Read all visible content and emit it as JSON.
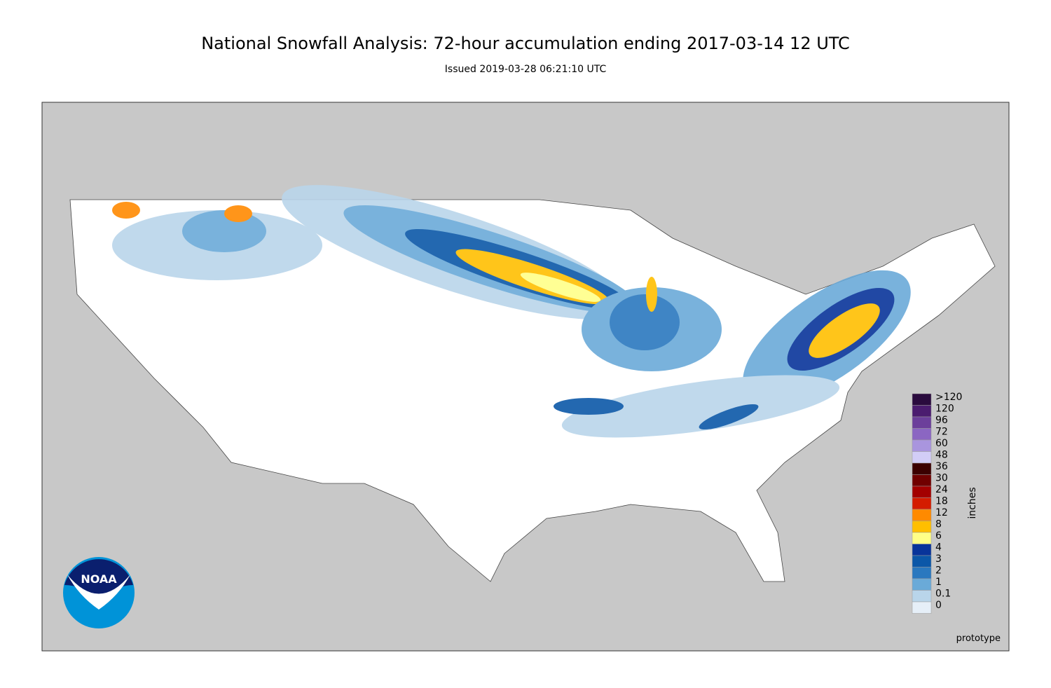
{
  "header": {
    "title": "National Snowfall Analysis: 72-hour accumulation ending 2017-03-14 12 UTC",
    "subtitle": "Issued 2019-03-28 06:21:10 UTC"
  },
  "legend": {
    "unit": "inches",
    "items": [
      {
        "label": ">120",
        "color": "#2a0b3e"
      },
      {
        "label": "120",
        "color": "#4b1c6f"
      },
      {
        "label": "96",
        "color": "#6c3f9b"
      },
      {
        "label": "72",
        "color": "#8b66c2"
      },
      {
        "label": "60",
        "color": "#a995de"
      },
      {
        "label": "48",
        "color": "#d2cdf7"
      },
      {
        "label": "36",
        "color": "#3b0000"
      },
      {
        "label": "30",
        "color": "#700000"
      },
      {
        "label": "24",
        "color": "#a30000"
      },
      {
        "label": "18",
        "color": "#d41c00"
      },
      {
        "label": "12",
        "color": "#ff8a00"
      },
      {
        "label": "8",
        "color": "#ffbf00"
      },
      {
        "label": "6",
        "color": "#ffff88"
      },
      {
        "label": "4",
        "color": "#08349a"
      },
      {
        "label": "3",
        "color": "#0b57a8"
      },
      {
        "label": "2",
        "color": "#2a78bf"
      },
      {
        "label": "1",
        "color": "#6aaad8"
      },
      {
        "label": "0.1",
        "color": "#b9d5ea"
      },
      {
        "label": "0",
        "color": "#e6eff8"
      }
    ]
  },
  "note": "prototype",
  "logo": {
    "text": "NOAA"
  }
}
